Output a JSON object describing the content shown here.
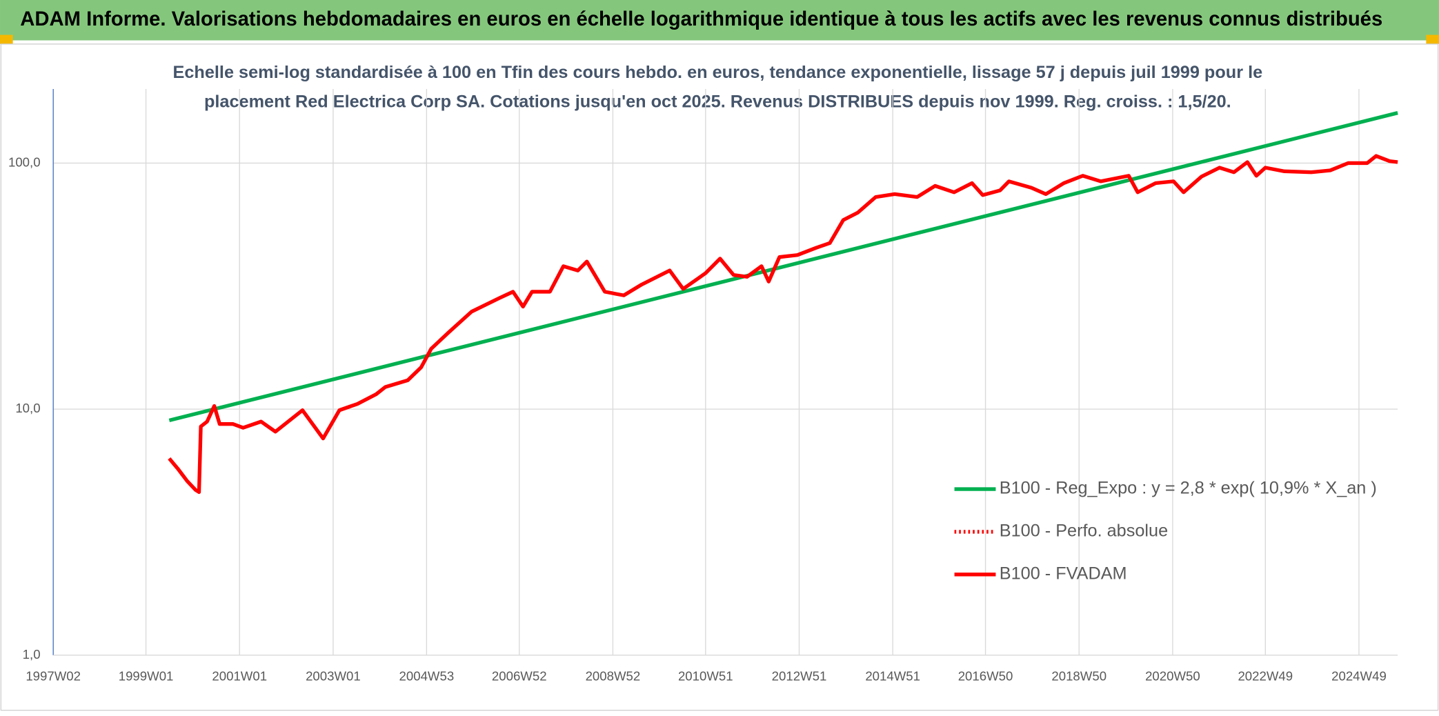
{
  "header": {
    "title": "ADAM Informe. Valorisations hebdomadaires en euros en échelle logarithmique identique à tous les actifs avec les revenus connus distribués"
  },
  "chart_data": {
    "type": "line",
    "subtitle": [
      "Echelle semi-log standardisée à 100 en Tfin des cours hebdo. en euros, tendance exponentielle, lissage 57 j depuis juil 1999 pour le",
      "placement Red Electrica Corp SA. Cotations jusqu'en oct 2025. Revenus DISTRIBUES depuis nov 1999. Reg. croiss. : 1,5/20."
    ],
    "log_y": true,
    "grid": true,
    "legend": "lower-right",
    "xlim": [
      "1997W02",
      "2025W40"
    ],
    "xticks": [
      "1997W02",
      "1999W01",
      "2001W01",
      "2003W01",
      "2004W53",
      "2006W52",
      "2008W52",
      "2010W51",
      "2012W51",
      "2014W51",
      "2016W50",
      "2018W50",
      "2020W50",
      "2022W49",
      "2024W49"
    ],
    "ylim": [
      1,
      200
    ],
    "yticks": [
      {
        "value": 1,
        "label": "1,0"
      },
      {
        "value": 10,
        "label": "10,0"
      },
      {
        "value": 100,
        "label": "100,0"
      }
    ],
    "series": [
      {
        "name": "B100 - Reg_Expo : y = 2,8 * exp( 10,9% *  X_an )",
        "color": "#00b050",
        "style": "solid",
        "x": [
          "1999W27",
          "2025W40"
        ],
        "values": [
          9.0,
          160
        ]
      },
      {
        "name": "B100 - Perfo. absolue",
        "color": "#ff0000",
        "style": "dotted",
        "x": [
          "1999W27",
          "1999W37",
          "1999W47",
          "2000W04",
          "2000W08",
          "2000W10",
          "2000W17",
          "2000W25",
          "2000W31",
          "2000W46",
          "2001W05",
          "2001W25",
          "2001W41",
          "2002W19",
          "2002W42",
          "2003W08",
          "2003W28",
          "2003W49",
          "2004W07",
          "2004W32",
          "2004W47",
          "2005W06",
          "2005W26",
          "2005W51",
          "2006W30",
          "2006W45",
          "2007W04",
          "2007W14",
          "2007W34",
          "2007W49",
          "2008W13",
          "2008W23",
          "2008W43",
          "2009W12",
          "2009W32",
          "2010W11",
          "2010W26",
          "2010W51",
          "2011W15",
          "2011W30",
          "2011W45",
          "2012W09",
          "2012W17",
          "2012W29",
          "2012W49",
          "2013W18",
          "2013W33",
          "2013W48",
          "2014W12",
          "2014W32",
          "2015W01",
          "2015W26",
          "2015W46",
          "2016W15",
          "2016W35",
          "2016W47",
          "2017W14",
          "2017W24",
          "2017W49",
          "2018W13",
          "2018W33",
          "2019W02",
          "2019W22",
          "2020W01",
          "2020W11",
          "2020W31",
          "2020W51",
          "2021W10",
          "2021W30",
          "2021W50",
          "2022W14",
          "2022W29",
          "2022W39",
          "2022W49",
          "2023W18",
          "2023W48",
          "2024W17",
          "2024W37",
          "2025W06",
          "2025W16",
          "2025W31",
          "2025W40"
        ],
        "values": [
          6.3,
          5.7,
          5.1,
          4.7,
          4.6,
          8.5,
          8.9,
          10.3,
          8.7,
          8.7,
          8.4,
          8.9,
          8.1,
          9.9,
          7.6,
          9.9,
          10.5,
          11.5,
          12.3,
          13.1,
          14.8,
          17.6,
          20.6,
          24.9,
          28.3,
          30.0,
          26.1,
          30.0,
          30.0,
          38.1,
          36.6,
          39.8,
          30.0,
          29.0,
          32.1,
          36.6,
          30.8,
          35.7,
          40.9,
          35.1,
          34.5,
          38.1,
          33.0,
          41.5,
          42.3,
          45.3,
          47.3,
          58.7,
          62.9,
          72.8,
          74.8,
          72.8,
          80.8,
          76.1,
          82.9,
          74.1,
          77.4,
          84.3,
          79.4,
          74.8,
          82.9,
          88.8,
          84.3,
          88.8,
          76.1,
          82.9,
          84.3,
          76.1,
          88.1,
          95.8,
          91.8,
          100.9,
          88.8,
          95.8,
          92.6,
          91.8,
          93.4,
          100.0,
          100.0,
          106.9,
          101.8,
          100.9
        ]
      },
      {
        "name": "B100 - FVADAM",
        "color": "#ff0000",
        "style": "solid",
        "x": [
          "1999W27",
          "1999W37",
          "1999W47",
          "2000W04",
          "2000W08",
          "2000W10",
          "2000W17",
          "2000W25",
          "2000W31",
          "2000W46",
          "2001W05",
          "2001W25",
          "2001W41",
          "2002W19",
          "2002W42",
          "2003W08",
          "2003W28",
          "2003W49",
          "2004W07",
          "2004W32",
          "2004W47",
          "2005W06",
          "2005W26",
          "2005W51",
          "2006W30",
          "2006W45",
          "2007W04",
          "2007W14",
          "2007W34",
          "2007W49",
          "2008W13",
          "2008W23",
          "2008W43",
          "2009W12",
          "2009W32",
          "2010W11",
          "2010W26",
          "2010W51",
          "2011W15",
          "2011W30",
          "2011W45",
          "2012W09",
          "2012W17",
          "2012W29",
          "2012W49",
          "2013W18",
          "2013W33",
          "2013W48",
          "2014W12",
          "2014W32",
          "2015W01",
          "2015W26",
          "2015W46",
          "2016W15",
          "2016W35",
          "2016W47",
          "2017W14",
          "2017W24",
          "2017W49",
          "2018W13",
          "2018W33",
          "2019W02",
          "2019W22",
          "2020W01",
          "2020W11",
          "2020W31",
          "2020W51",
          "2021W10",
          "2021W30",
          "2021W50",
          "2022W14",
          "2022W29",
          "2022W39",
          "2022W49",
          "2023W18",
          "2023W48",
          "2024W17",
          "2024W37",
          "2025W06",
          "2025W16",
          "2025W31",
          "2025W40"
        ],
        "values": [
          6.3,
          5.7,
          5.1,
          4.7,
          4.6,
          8.5,
          8.9,
          10.3,
          8.7,
          8.7,
          8.4,
          8.9,
          8.1,
          9.9,
          7.6,
          9.9,
          10.5,
          11.5,
          12.3,
          13.1,
          14.8,
          17.6,
          20.6,
          24.9,
          28.3,
          30.0,
          26.1,
          30.0,
          30.0,
          38.1,
          36.6,
          39.8,
          30.0,
          29.0,
          32.1,
          36.6,
          30.8,
          35.7,
          40.9,
          35.1,
          34.5,
          38.1,
          33.0,
          41.5,
          42.3,
          45.3,
          47.3,
          58.7,
          62.9,
          72.8,
          74.8,
          72.8,
          80.8,
          76.1,
          82.9,
          74.1,
          77.4,
          84.3,
          79.4,
          74.8,
          82.9,
          88.8,
          84.3,
          88.8,
          76.1,
          82.9,
          84.3,
          76.1,
          88.1,
          95.8,
          91.8,
          100.9,
          88.8,
          95.8,
          92.6,
          91.8,
          93.4,
          100.0,
          100.0,
          106.9,
          101.8,
          100.9
        ]
      }
    ]
  }
}
